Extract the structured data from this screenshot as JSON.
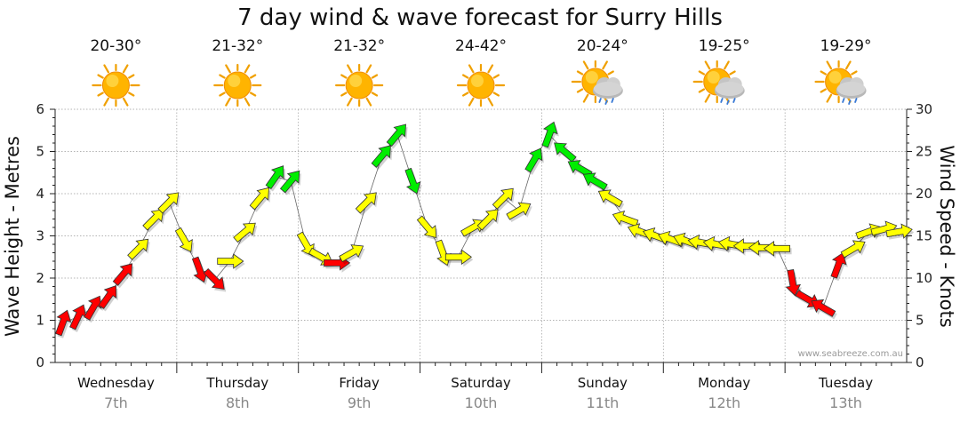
{
  "chart_data": {
    "type": "line",
    "title": "7 day wind & wave forecast for Surry Hills",
    "ylabel_left": "Wave Height - Metres",
    "ylabel_right": "Wind Speed - Knots",
    "ylim_left": [
      0,
      6
    ],
    "ylim_right": [
      0,
      30
    ],
    "yticks_left": [
      "0",
      "1",
      "2",
      "3",
      "4",
      "5",
      "6"
    ],
    "yticks_right": [
      "0",
      "5",
      "10",
      "15",
      "20",
      "25",
      "30"
    ],
    "grid": true,
    "credit": "www.seabreeze.com.au",
    "days": [
      {
        "name": "Wednesday",
        "date": "7th",
        "temp": "20-30°",
        "weather": "sunny",
        "bold": false
      },
      {
        "name": "Thursday",
        "date": "8th",
        "temp": "21-32°",
        "weather": "sunny",
        "bold": false
      },
      {
        "name": "Friday",
        "date": "9th",
        "temp": "21-32°",
        "weather": "sunny",
        "bold": false
      },
      {
        "name": "Saturday",
        "date": "10th",
        "temp": "24-42°",
        "weather": "sunny",
        "bold": true
      },
      {
        "name": "Sunday",
        "date": "11th",
        "temp": "20-24°",
        "weather": "sun-rain",
        "bold": true
      },
      {
        "name": "Monday",
        "date": "12th",
        "temp": "19-25°",
        "weather": "sun-rain",
        "bold": false
      },
      {
        "name": "Tuesday",
        "date": "13th",
        "temp": "19-29°",
        "weather": "sun-rain",
        "bold": false
      }
    ],
    "series": [
      {
        "name": "Wind Speed - Knots",
        "unit": "knots",
        "step_hours": 3,
        "values": [
          4.7,
          5.4,
          6.5,
          7.8,
          10.5,
          13.5,
          17,
          19,
          14.5,
          11,
          9.8,
          12,
          15.5,
          19.5,
          22,
          21.5,
          14,
          12.5,
          11.8,
          13,
          19,
          24.5,
          27,
          21.5,
          16,
          13,
          12.5,
          16,
          17,
          19.5,
          18,
          24,
          27,
          25,
          23,
          21.5,
          19.5,
          17,
          15.5,
          15,
          14.6,
          14.4,
          14.2,
          14,
          14,
          13.8,
          13.6,
          13.5,
          9.5,
          7.5,
          6.5,
          11.5,
          13.5,
          15.5,
          15.8,
          15.5
        ],
        "arrow_direction_deg": [
          20,
          25,
          30,
          35,
          40,
          45,
          45,
          45,
          150,
          160,
          135,
          90,
          50,
          40,
          35,
          40,
          150,
          120,
          90,
          60,
          45,
          40,
          40,
          160,
          140,
          160,
          90,
          60,
          45,
          45,
          60,
          30,
          20,
          310,
          300,
          300,
          300,
          290,
          290,
          290,
          290,
          290,
          280,
          280,
          280,
          270,
          270,
          270,
          170,
          120,
          300,
          20,
          60,
          70,
          75,
          80
        ]
      }
    ],
    "color_thresholds_knots": {
      "red": [
        0,
        12
      ],
      "yellow": [
        12,
        20
      ],
      "green": [
        20,
        30
      ]
    },
    "colors": {
      "red": "#ff0000",
      "yellow": "#ffff00",
      "green": "#00ee00"
    }
  }
}
